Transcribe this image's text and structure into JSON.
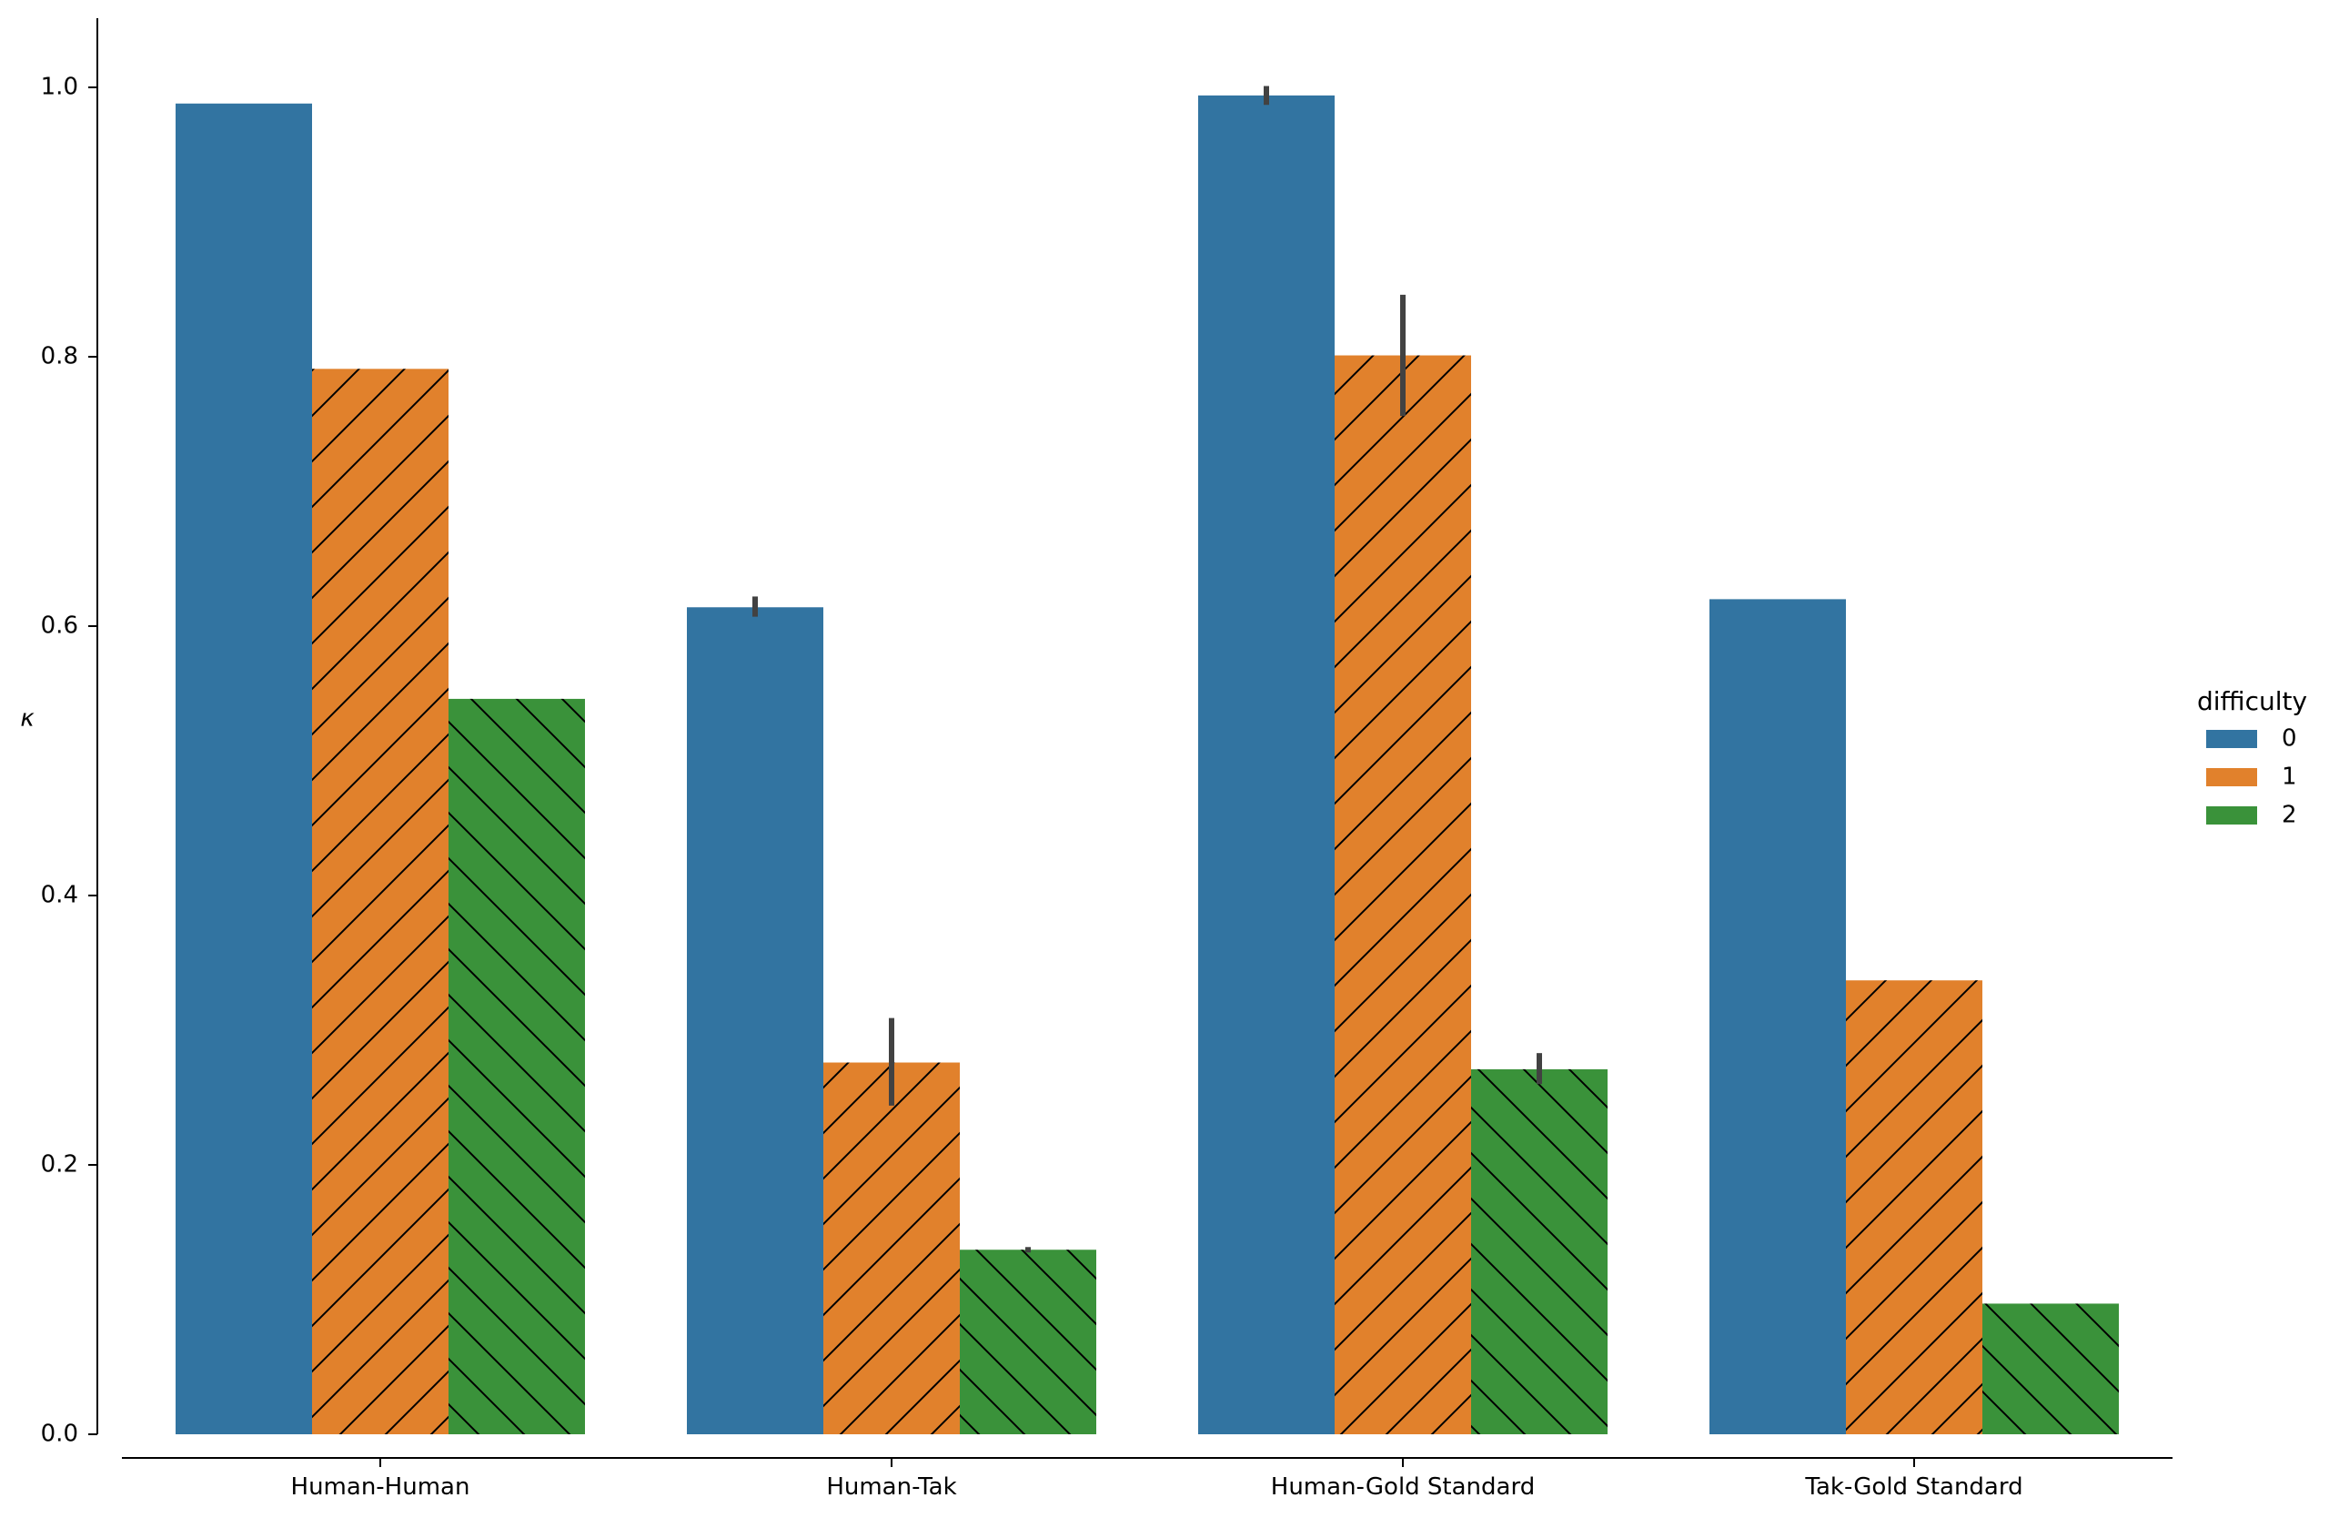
{
  "chart_data": {
    "type": "bar",
    "title": "",
    "xlabel": "",
    "ylabel": "κ",
    "ylim": [
      0,
      1.07
    ],
    "yticks": [
      0.0,
      0.2,
      0.4,
      0.6,
      0.8,
      1.0
    ],
    "ytick_labels": [
      "0.0",
      "0.2",
      "0.4",
      "0.6",
      "0.8",
      "1.0"
    ],
    "categories": [
      "Human-Human",
      "Human-Tak",
      "Human-Gold Standard",
      "Tak-Gold Standard"
    ],
    "legend": {
      "title": "difficulty",
      "placement": "right"
    },
    "grid": false,
    "series": [
      {
        "name": "0",
        "color": "#3274a1",
        "hatch": "none",
        "values": [
          0.988,
          0.614,
          0.994,
          0.62
        ],
        "error_low": [
          null,
          0.607,
          0.987,
          null
        ],
        "error_high": [
          null,
          0.622,
          1.001,
          null
        ]
      },
      {
        "name": "1",
        "color": "#e1812c",
        "hatch": "forward",
        "values": [
          0.791,
          0.276,
          0.801,
          0.337
        ],
        "error_low": [
          null,
          0.244,
          0.756,
          null
        ],
        "error_high": [
          null,
          0.309,
          0.846,
          null
        ]
      },
      {
        "name": "2",
        "color": "#3a923a",
        "hatch": "back",
        "values": [
          0.546,
          0.137,
          0.271,
          0.097
        ],
        "error_low": [
          null,
          0.135,
          0.26,
          null
        ],
        "error_high": [
          null,
          0.139,
          0.283,
          null
        ]
      }
    ]
  }
}
